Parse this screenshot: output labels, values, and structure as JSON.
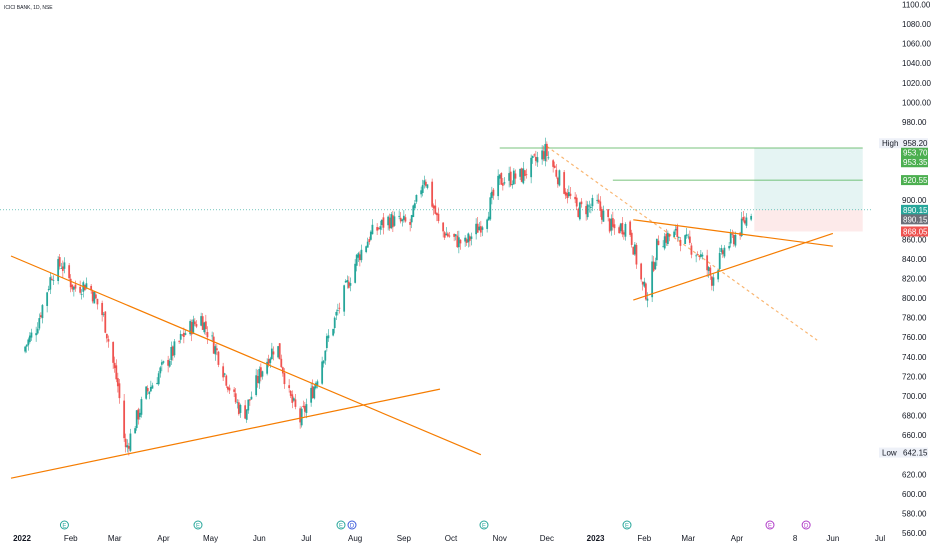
{
  "chart_data": {
    "type": "candlestick",
    "title": "ICICI BANK, 1D, NSE",
    "y_axis": {
      "ylim": [
        550,
        1110
      ],
      "ticks": [
        560,
        580,
        600,
        620,
        640,
        660,
        680,
        700,
        720,
        740,
        760,
        780,
        800,
        820,
        840,
        860,
        880,
        900,
        920,
        940,
        960,
        980,
        1000,
        1020,
        1040,
        1060,
        1080,
        1100
      ],
      "tick_labels": [
        "560.00",
        "580.00",
        "600.00",
        "620.00",
        "640.00",
        "660.00",
        "680.00",
        "700.00",
        "720.00",
        "740.00",
        "760.00",
        "780.00",
        "800.00",
        "820.00",
        "840.00",
        "860.00",
        "880.00",
        "900.00",
        "920.00",
        "940.00",
        "960.00",
        "980.00",
        "1000.00",
        "1020.00",
        "1040.00",
        "1060.00",
        "1080.00",
        "1100.00"
      ]
    },
    "x_axis": {
      "labels": [
        "2022",
        "Feb",
        "Mar",
        "Apr",
        "May",
        "Jun",
        "Jul",
        "Aug",
        "Sep",
        "Oct",
        "Nov",
        "Dec",
        "2023",
        "Feb",
        "Mar",
        "Apr",
        "8",
        "Jun",
        "Jul"
      ],
      "dates": [
        "2022-01-01",
        "2022-02-01",
        "2022-03-01",
        "2022-04-01",
        "2022-05-01",
        "2022-06-01",
        "2022-07-01",
        "2022-08-01",
        "2022-09-01",
        "2022-10-01",
        "2022-11-01",
        "2022-12-01",
        "2023-01-01",
        "2023-02-01",
        "2023-03-01",
        "2023-04-01",
        "2023-05-08",
        "2023-06-01",
        "2023-07-01"
      ]
    },
    "price_path": [
      [
        "2022-01-01",
        745
      ],
      [
        "2022-01-10",
        770
      ],
      [
        "2022-01-20",
        825
      ],
      [
        "2022-01-26",
        835
      ],
      [
        "2022-02-03",
        810
      ],
      [
        "2022-02-12",
        815
      ],
      [
        "2022-02-22",
        780
      ],
      [
        "2022-03-03",
        710
      ],
      [
        "2022-03-08",
        645
      ],
      [
        "2022-03-20",
        700
      ],
      [
        "2022-04-05",
        740
      ],
      [
        "2022-04-15",
        765
      ],
      [
        "2022-04-25",
        780
      ],
      [
        "2022-05-05",
        745
      ],
      [
        "2022-05-15",
        700
      ],
      [
        "2022-05-22",
        680
      ],
      [
        "2022-06-02",
        725
      ],
      [
        "2022-06-12",
        755
      ],
      [
        "2022-06-20",
        700
      ],
      [
        "2022-06-27",
        675
      ],
      [
        "2022-07-06",
        710
      ],
      [
        "2022-07-14",
        755
      ],
      [
        "2022-07-24",
        800
      ],
      [
        "2022-08-02",
        840
      ],
      [
        "2022-08-11",
        865
      ],
      [
        "2022-08-22",
        880
      ],
      [
        "2022-09-05",
        875
      ],
      [
        "2022-09-14",
        925
      ],
      [
        "2022-09-24",
        870
      ],
      [
        "2022-10-03",
        860
      ],
      [
        "2022-10-10",
        855
      ],
      [
        "2022-10-22",
        880
      ],
      [
        "2022-11-01",
        920
      ],
      [
        "2022-11-15",
        925
      ],
      [
        "2022-11-30",
        950
      ],
      [
        "2022-12-08",
        925
      ],
      [
        "2022-12-20",
        890
      ],
      [
        "2023-01-02",
        895
      ],
      [
        "2023-01-12",
        870
      ],
      [
        "2023-01-22",
        875
      ],
      [
        "2023-01-31",
        810
      ],
      [
        "2023-02-03",
        805
      ],
      [
        "2023-02-10",
        860
      ],
      [
        "2023-02-22",
        865
      ],
      [
        "2023-03-08",
        845
      ],
      [
        "2023-03-16",
        820
      ],
      [
        "2023-03-24",
        850
      ],
      [
        "2023-04-03",
        870
      ],
      [
        "2023-04-10",
        890
      ]
    ],
    "price_levels": [
      {
        "label": "High",
        "value": "958.20",
        "kind": "high",
        "y": 958.2
      },
      {
        "label": "",
        "value": "953.70",
        "kind": "green",
        "y": 953.7
      },
      {
        "label": "",
        "value": "953.35",
        "kind": "green",
        "y": 953.35
      },
      {
        "label": "",
        "value": "920.55",
        "kind": "green",
        "y": 920.55
      },
      {
        "label": "",
        "value": "890.15",
        "kind": "teal",
        "y": 890.15
      },
      {
        "label": "",
        "value": "890.15",
        "kind": "gray",
        "y": 890.15
      },
      {
        "label": "",
        "value": "868.05",
        "kind": "red",
        "y": 868.05
      },
      {
        "label": "Low",
        "value": "642.15",
        "kind": "low",
        "y": 642.15
      }
    ],
    "trendlines": [
      {
        "from": [
          "2021-12-25",
          843
        ],
        "to": [
          "2022-10-20",
          640
        ],
        "color": "#f57c00"
      },
      {
        "from": [
          "2021-12-25",
          616
        ],
        "to": [
          "2022-09-24",
          707
        ],
        "color": "#f57c00"
      },
      {
        "from": [
          "2023-01-25",
          880
        ],
        "to": [
          "2023-06-01",
          853
        ],
        "color": "#f57c00"
      },
      {
        "from": [
          "2023-01-25",
          798
        ],
        "to": [
          "2023-06-01",
          866
        ],
        "color": "#f57c00"
      },
      {
        "from": [
          "2022-12-01",
          955
        ],
        "to": [
          "2023-05-22",
          757
        ],
        "color": "#f57c00"
      }
    ],
    "horizontal_levels": [
      {
        "y": 953.35,
        "from": "2022-11-01",
        "to": "2023-06-20"
      },
      {
        "y": 920.55,
        "from": "2023-01-12",
        "to": "2023-06-20"
      }
    ],
    "position": {
      "from": "2023-04-12",
      "to": "2023-06-20",
      "entry": 890.15,
      "target": 953.35,
      "stop": 868.05
    },
    "event_markers": [
      {
        "date": "2022-01-28",
        "letter": "E",
        "color": "#26a69a"
      },
      {
        "date": "2022-04-23",
        "letter": "E",
        "color": "#26a69a"
      },
      {
        "date": "2022-07-23",
        "letter": "E",
        "color": "#26a69a"
      },
      {
        "date": "2022-07-30",
        "letter": "D",
        "color": "#3b5bdb"
      },
      {
        "date": "2022-10-22",
        "letter": "E",
        "color": "#26a69a"
      },
      {
        "date": "2023-01-21",
        "letter": "E",
        "color": "#26a69a"
      },
      {
        "date": "2023-04-22",
        "letter": "E",
        "color": "#b03cc8"
      },
      {
        "date": "2023-05-15",
        "letter": "D",
        "color": "#b03cc8"
      }
    ],
    "colors": {
      "up": "#26a69a",
      "down": "#ef5350",
      "trend": "#f57c00",
      "level": "#4caf50",
      "grid": "#f0f3fa"
    }
  }
}
